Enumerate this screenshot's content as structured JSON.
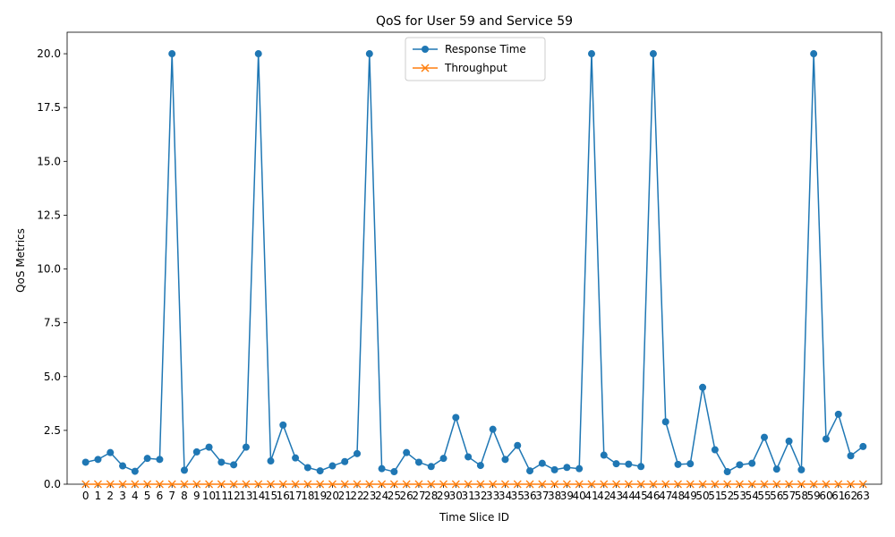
{
  "chart_data": {
    "type": "line",
    "title": "QoS for User 59 and Service 59",
    "xlabel": "Time Slice ID",
    "ylabel": "QoS Metrics",
    "x": [
      0,
      1,
      2,
      3,
      4,
      5,
      6,
      7,
      8,
      9,
      10,
      11,
      12,
      13,
      14,
      15,
      16,
      17,
      18,
      19,
      20,
      21,
      22,
      23,
      24,
      25,
      26,
      27,
      28,
      29,
      30,
      31,
      32,
      33,
      34,
      35,
      36,
      37,
      38,
      39,
      40,
      41,
      42,
      43,
      44,
      45,
      46,
      47,
      48,
      49,
      50,
      51,
      52,
      53,
      54,
      55,
      56,
      57,
      58,
      59,
      60,
      61,
      62,
      63
    ],
    "x_tick_labels": [
      "0",
      "1",
      "2",
      "3",
      "4",
      "5",
      "6",
      "7",
      "8",
      "9",
      "10",
      "11",
      "12",
      "13",
      "14",
      "15",
      "16",
      "17",
      "18",
      "19",
      "20",
      "21",
      "22",
      "23",
      "24",
      "25",
      "26",
      "27",
      "28",
      "29",
      "30",
      "31",
      "32",
      "33",
      "34",
      "35",
      "36",
      "37",
      "38",
      "39",
      "40",
      "41",
      "42",
      "43",
      "44",
      "45",
      "46",
      "47",
      "48",
      "49",
      "50",
      "51",
      "52",
      "53",
      "54",
      "55",
      "56",
      "57",
      "58",
      "59",
      "60",
      "61",
      "62",
      "63"
    ],
    "ylim": [
      0,
      21
    ],
    "y_ticks": [
      0,
      2.5,
      5,
      7.5,
      10,
      12.5,
      15,
      17.5,
      20
    ],
    "y_tick_labels": [
      "0.0",
      "2.5",
      "5.0",
      "7.5",
      "10.0",
      "12.5",
      "15.0",
      "17.5",
      "20.0"
    ],
    "grid": false,
    "legend_position": "upper-center",
    "series": [
      {
        "name": "Response Time",
        "color": "#1f77b4",
        "marker": "circle",
        "values": [
          1.02,
          1.15,
          1.47,
          0.85,
          0.6,
          1.2,
          1.15,
          20.0,
          0.65,
          1.5,
          1.72,
          1.02,
          0.9,
          1.72,
          20.0,
          1.08,
          2.75,
          1.22,
          0.77,
          0.62,
          0.85,
          1.05,
          1.42,
          20.0,
          0.72,
          0.58,
          1.47,
          1.02,
          0.82,
          1.2,
          3.1,
          1.27,
          0.87,
          2.55,
          1.15,
          1.8,
          0.62,
          0.97,
          0.67,
          0.78,
          0.72,
          20.0,
          1.35,
          0.95,
          0.93,
          0.82,
          20.0,
          2.9,
          0.92,
          0.95,
          4.5,
          1.6,
          0.58,
          0.9,
          0.97,
          2.18,
          0.7,
          2.0,
          0.67,
          20.0,
          2.1,
          3.25,
          1.32,
          1.75
        ]
      },
      {
        "name": "Throughput",
        "color": "#ff7f0e",
        "marker": "x",
        "values": [
          0,
          0,
          0,
          0,
          0,
          0,
          0,
          0,
          0,
          0,
          0,
          0,
          0,
          0,
          0,
          0,
          0,
          0,
          0,
          0,
          0,
          0,
          0,
          0,
          0,
          0,
          0,
          0,
          0,
          0,
          0,
          0,
          0,
          0,
          0,
          0,
          0,
          0,
          0,
          0,
          0,
          0,
          0,
          0,
          0,
          0,
          0,
          0,
          0,
          0,
          0,
          0,
          0,
          0,
          0,
          0,
          0,
          0,
          0,
          0,
          0,
          0,
          0,
          0
        ]
      }
    ]
  }
}
